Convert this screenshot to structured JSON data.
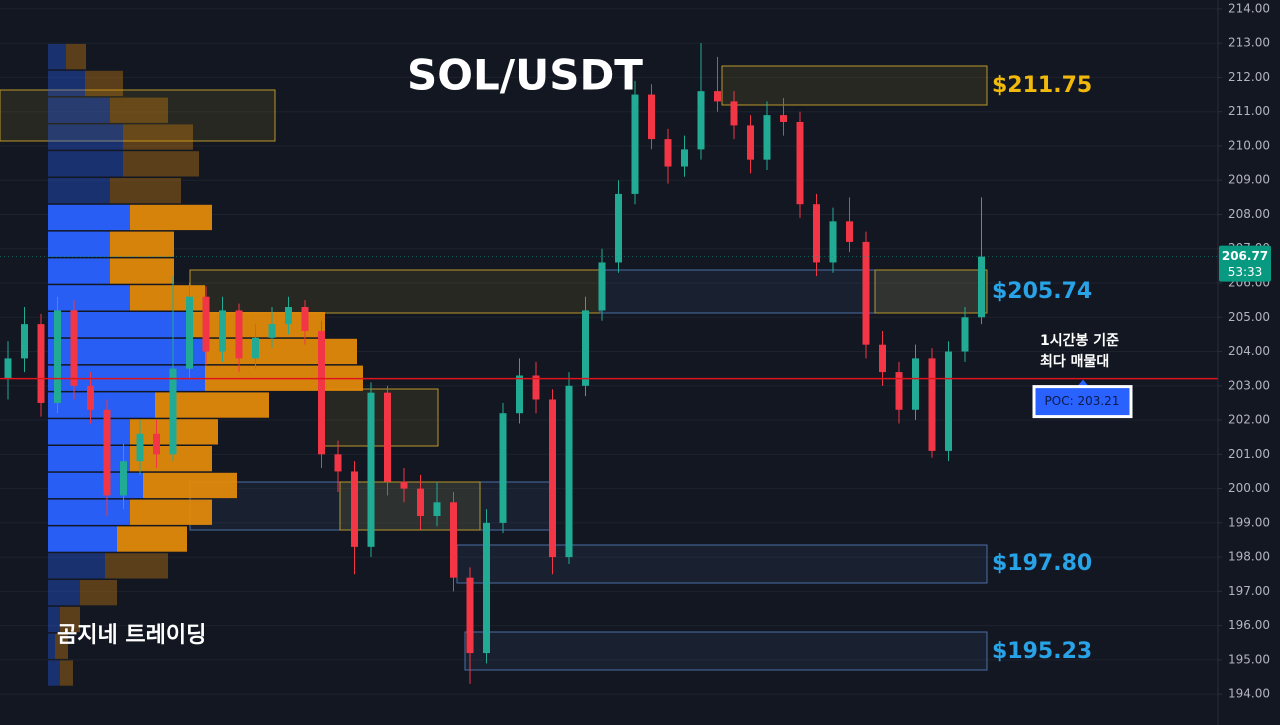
{
  "chart_data": {
    "type": "candlestick",
    "title": "SOL/USDT",
    "watermark": "곰지네 트레이딩",
    "note": [
      "1시간봉 기준",
      "최다 매물대"
    ],
    "up_color": "#22ab94",
    "down_color": "#f23645",
    "grid": true,
    "ylim": [
      193.1,
      214.26
    ],
    "yticks": [
      {
        "value": 194,
        "label": "194.00"
      },
      {
        "value": 195,
        "label": "195.00"
      },
      {
        "value": 196,
        "label": "196.00"
      },
      {
        "value": 197,
        "label": "197.00"
      },
      {
        "value": 198,
        "label": "198.00"
      },
      {
        "value": 199,
        "label": "199.00"
      },
      {
        "value": 200,
        "label": "200.00"
      },
      {
        "value": 201,
        "label": "201.00"
      },
      {
        "value": 202,
        "label": "202.00"
      },
      {
        "value": 203,
        "label": "203.00"
      },
      {
        "value": 204,
        "label": "204.00"
      },
      {
        "value": 205,
        "label": "205.00"
      },
      {
        "value": 206,
        "label": "206.00"
      },
      {
        "value": 207,
        "label": "207.00"
      },
      {
        "value": 208,
        "label": "208.00"
      },
      {
        "value": 209,
        "label": "209.00"
      },
      {
        "value": 210,
        "label": "210.00"
      },
      {
        "value": 211,
        "label": "211.00"
      },
      {
        "value": 212,
        "label": "212.00"
      },
      {
        "value": 213,
        "label": "213.00"
      },
      {
        "value": 214,
        "label": "214.00"
      }
    ],
    "open": [
      203.2,
      203.8,
      204.8,
      202.5,
      205.2,
      203.0,
      202.3,
      199.8,
      200.8,
      201.6,
      201.0,
      203.5,
      205.6,
      204.0,
      205.2,
      203.8,
      204.4,
      204.8,
      205.3,
      204.6,
      201.0,
      200.5,
      198.3,
      202.8,
      200.2,
      200.0,
      199.2,
      199.6,
      197.4,
      195.2,
      199.0,
      202.2,
      203.3,
      202.6,
      198.0,
      203.0,
      205.2,
      206.6,
      208.6,
      211.5,
      210.2,
      209.4,
      209.9,
      211.6,
      211.3,
      210.6,
      209.6,
      210.9,
      210.7,
      208.3,
      206.6,
      207.8,
      207.2,
      204.2,
      203.4,
      202.3,
      203.8,
      201.1,
      204.0,
      205.0
    ],
    "high": [
      204.3,
      205.3,
      205.1,
      205.6,
      205.5,
      203.4,
      202.6,
      201.3,
      202.0,
      202.0,
      206.2,
      206.0,
      205.9,
      205.6,
      205.4,
      204.8,
      205.3,
      205.6,
      205.5,
      204.9,
      201.4,
      200.8,
      203.1,
      203.0,
      200.6,
      200.4,
      200.2,
      199.9,
      197.7,
      199.4,
      202.5,
      203.8,
      203.7,
      202.9,
      203.4,
      205.6,
      207.0,
      209.0,
      211.9,
      211.8,
      210.5,
      210.3,
      213.0,
      212.6,
      211.6,
      210.9,
      211.3,
      211.4,
      211.0,
      208.6,
      208.2,
      208.5,
      207.5,
      204.6,
      203.7,
      204.2,
      204.1,
      204.3,
      205.3,
      208.5
    ],
    "low": [
      202.6,
      203.4,
      202.1,
      202.2,
      202.6,
      201.9,
      199.2,
      199.4,
      200.4,
      200.6,
      200.8,
      203.2,
      203.6,
      203.7,
      203.4,
      203.5,
      204.1,
      204.5,
      204.2,
      200.6,
      199.9,
      197.5,
      198.0,
      199.8,
      199.6,
      198.8,
      198.9,
      197.0,
      194.3,
      194.9,
      198.7,
      201.9,
      202.2,
      197.5,
      197.8,
      202.7,
      204.9,
      206.3,
      208.3,
      209.9,
      208.9,
      209.1,
      209.6,
      211.0,
      210.2,
      209.2,
      209.3,
      210.3,
      207.9,
      206.2,
      206.3,
      206.9,
      203.8,
      203.0,
      201.9,
      202.0,
      200.9,
      200.8,
      203.7,
      204.8
    ],
    "close": [
      203.8,
      204.8,
      202.5,
      205.2,
      203.0,
      202.3,
      199.8,
      200.8,
      201.6,
      201.0,
      203.5,
      205.6,
      204.0,
      205.2,
      203.8,
      204.4,
      204.8,
      205.3,
      204.6,
      201.0,
      200.5,
      198.3,
      202.8,
      200.2,
      200.0,
      199.2,
      199.6,
      197.4,
      195.2,
      199.0,
      202.2,
      203.3,
      202.6,
      198.0,
      203.0,
      205.2,
      206.6,
      208.6,
      211.5,
      210.2,
      209.4,
      209.9,
      211.6,
      211.3,
      210.6,
      209.6,
      210.9,
      210.7,
      208.3,
      206.6,
      207.8,
      207.2,
      204.2,
      203.4,
      202.3,
      203.8,
      201.1,
      204.0,
      205.0,
      206.77
    ],
    "volume_profile": {
      "buy_color": "#2962ff",
      "sell_color": "#e0890c",
      "value_area": [
        6,
        18
      ],
      "buy": [
        18,
        37,
        62,
        75,
        75,
        62,
        82,
        62,
        62,
        82,
        138,
        157,
        157,
        107,
        82,
        82,
        95,
        82,
        69,
        57,
        32,
        12,
        7,
        12
      ],
      "sell": [
        20,
        38,
        58,
        70,
        76,
        71,
        82,
        64,
        64,
        75,
        139,
        152,
        158,
        114,
        88,
        82,
        94,
        82,
        70,
        63,
        37,
        20,
        13,
        13
      ]
    },
    "levels": [
      {
        "value": 211.75,
        "label": "$211.75",
        "color": "#f0b90b"
      },
      {
        "value": 205.74,
        "label": "$205.74",
        "color": "#29a3e8"
      },
      {
        "value": 197.8,
        "label": "$197.80",
        "color": "#29a3e8"
      },
      {
        "value": 195.23,
        "label": "$195.23",
        "color": "#29a3e8"
      }
    ],
    "poc": {
      "value": 203.21,
      "label": "POC: 203.21",
      "color": "#e0141e"
    },
    "last_price": {
      "value": 206.77,
      "label": "206.77",
      "timer": "53:33",
      "color": "#089981"
    }
  }
}
